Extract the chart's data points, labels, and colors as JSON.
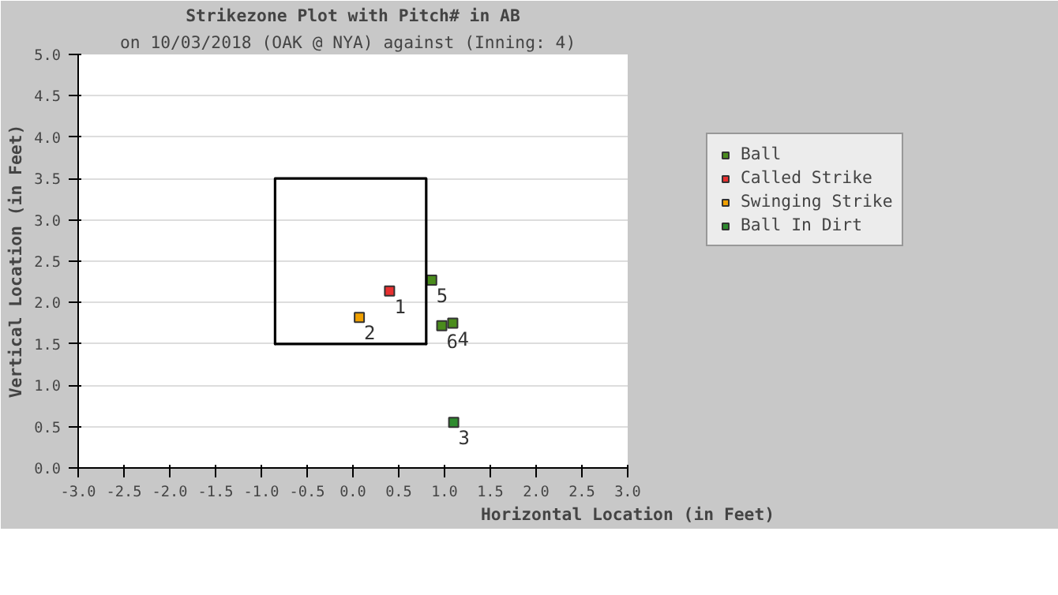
{
  "chart_data": {
    "type": "scatter",
    "title": "Strikezone Plot with Pitch# in AB",
    "subtitle": "on 10/03/2018 (OAK @ NYA) against  (Inning: 4)",
    "xlabel": "Horizontal Location (in Feet)",
    "ylabel": "Vertical Location (in Feet)",
    "xlim": [
      -3,
      3
    ],
    "ylim": [
      0,
      5
    ],
    "xticks": [
      {
        "value": -3,
        "label": "-3.0"
      },
      {
        "value": -2.5,
        "label": "-2.5"
      },
      {
        "value": -2,
        "label": "-2.0"
      },
      {
        "value": -1.5,
        "label": "-1.5"
      },
      {
        "value": -1,
        "label": "-1.0"
      },
      {
        "value": -0.5,
        "label": "-0.5"
      },
      {
        "value": 0,
        "label": "0.0"
      },
      {
        "value": 0.5,
        "label": "0.5"
      },
      {
        "value": 1,
        "label": "1.0"
      },
      {
        "value": 1.5,
        "label": "1.5"
      },
      {
        "value": 2,
        "label": "2.0"
      },
      {
        "value": 2.5,
        "label": "2.5"
      },
      {
        "value": 3,
        "label": "3.0"
      }
    ],
    "yticks": [
      {
        "value": 0,
        "label": "0.0"
      },
      {
        "value": 0.5,
        "label": "0.5"
      },
      {
        "value": 1,
        "label": "1.0"
      },
      {
        "value": 1.5,
        "label": "1.5"
      },
      {
        "value": 2,
        "label": "2.0"
      },
      {
        "value": 2.5,
        "label": "2.5"
      },
      {
        "value": 3,
        "label": "3.0"
      },
      {
        "value": 3.5,
        "label": "3.5"
      },
      {
        "value": 4,
        "label": "4.0"
      },
      {
        "value": 4.5,
        "label": "4.5"
      },
      {
        "value": 5,
        "label": "5.0"
      }
    ],
    "grid": "y",
    "legend": "right",
    "marker": "square",
    "series": [
      {
        "name": "Ball",
        "color": "#4a8c1c",
        "x": [
          1.09,
          0.86,
          0.97
        ],
        "values": [
          1.75,
          2.27,
          1.72
        ]
      },
      {
        "name": "Called Strike",
        "color": "#e83030",
        "x": [
          0.4
        ],
        "values": [
          2.14
        ]
      },
      {
        "name": "Swinging Strike",
        "color": "#f0a000",
        "x": [
          0.07
        ],
        "values": [
          1.82
        ]
      },
      {
        "name": "Ball In Dirt",
        "color": "#2e8b2e",
        "x": [
          1.1
        ],
        "values": [
          0.55
        ]
      },
      {
        "type": "line",
        "color": "#000000",
        "marker": "none",
        "x": [
          -0.85,
          -0.85,
          0.8,
          0.8
        ],
        "values": [
          1.5,
          3.5,
          3.5,
          1.5
        ]
      },
      {
        "type": "line",
        "color": "#000000",
        "marker": "none",
        "x": [
          -0.85,
          0.8
        ],
        "values": [
          1.5,
          1.5
        ]
      }
    ],
    "annotations": [
      {
        "text": "1",
        "x": 0.4,
        "y": 2.14
      },
      {
        "text": "2",
        "x": 0.07,
        "y": 1.82
      },
      {
        "text": "3",
        "x": 1.1,
        "y": 0.55
      },
      {
        "text": "4",
        "x": 1.09,
        "y": 1.75
      },
      {
        "text": "5",
        "x": 0.86,
        "y": 2.27
      },
      {
        "text": "6",
        "x": 0.97,
        "y": 1.72
      }
    ]
  }
}
